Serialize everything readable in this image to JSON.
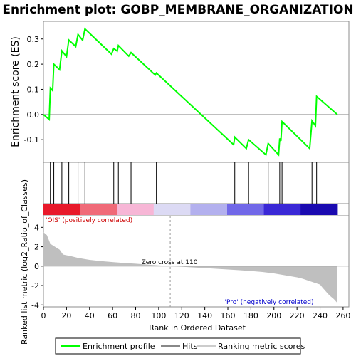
{
  "chart_data": {
    "type": "line",
    "title": "Enrichment plot: GOBP_MEMBRANE_ORGANIZATION",
    "es_ylabel": "Enrichment score (ES)",
    "metric_ylabel": "Ranked list metric (log2_Ratio_of_Classes)",
    "xlabel": "Rank in Ordered Dataset",
    "xlim": [
      0,
      265
    ],
    "es_ylim": [
      -0.19,
      0.37
    ],
    "metric_ylim": [
      -4.2,
      5.2
    ],
    "x_ticks": [
      0,
      20,
      40,
      60,
      80,
      100,
      120,
      140,
      160,
      180,
      200,
      220,
      240,
      260
    ],
    "es_ticks": [
      -0.1,
      0.0,
      0.1,
      0.2,
      0.3
    ],
    "metric_ticks": [
      -4,
      -2,
      0,
      2,
      4
    ],
    "hits": [
      6,
      9,
      16,
      22,
      30,
      36,
      61,
      65,
      76,
      98,
      166,
      178,
      195,
      205,
      207,
      233,
      237
    ],
    "es_profile": {
      "x": [
        0,
        5,
        6,
        8,
        9,
        14,
        16,
        20,
        22,
        28,
        30,
        34,
        36,
        59,
        61,
        64,
        65,
        74,
        76,
        97,
        98,
        165,
        166,
        176,
        178,
        193,
        195,
        204,
        205,
        206,
        207,
        231,
        233,
        236,
        237,
        255
      ],
      "y": [
        0.0,
        -0.02,
        0.105,
        0.095,
        0.2,
        0.178,
        0.253,
        0.23,
        0.296,
        0.27,
        0.318,
        0.295,
        0.34,
        0.24,
        0.262,
        0.252,
        0.274,
        0.232,
        0.246,
        0.157,
        0.165,
        -0.12,
        -0.09,
        -0.135,
        -0.1,
        -0.16,
        -0.115,
        -0.16,
        -0.095,
        -0.105,
        -0.028,
        -0.135,
        -0.025,
        -0.045,
        0.072,
        0.0
      ]
    },
    "metric_profile": {
      "rank": [
        0,
        3,
        6,
        10,
        14,
        17,
        25,
        30,
        40,
        50,
        60,
        70,
        80,
        90,
        100,
        110,
        120,
        130,
        140,
        150,
        160,
        170,
        180,
        190,
        200,
        205,
        210,
        220,
        225,
        230,
        235,
        240,
        242,
        245,
        248,
        252,
        255
      ],
      "value": [
        3.5,
        3.2,
        2.3,
        2.0,
        1.7,
        1.2,
        1.0,
        0.85,
        0.65,
        0.52,
        0.42,
        0.33,
        0.25,
        0.16,
        0.08,
        0.0,
        -0.06,
        -0.13,
        -0.2,
        -0.27,
        -0.34,
        -0.42,
        -0.5,
        -0.6,
        -0.75,
        -0.85,
        -0.95,
        -1.15,
        -1.3,
        -1.5,
        -1.7,
        -1.9,
        -2.2,
        -2.6,
        -3.0,
        -3.4,
        -3.8
      ]
    },
    "zero_cross_label": "Zero cross at 110",
    "zero_cross": 110,
    "pos_label": "'OIS' (positively correlated)",
    "neg_label": "'Pro' (negatively correlated)",
    "legend": [
      "Enrichment profile",
      "Hits",
      "Ranking metric scores"
    ],
    "colors": {
      "profile": "#00ff00",
      "hits": "#000000",
      "metric_fill": "#bfbfbf",
      "pos_label": "#cc0000",
      "neg_label": "#0000cc",
      "bar_stops": [
        "#e8192a",
        "#f06a78",
        "#f7b6d6",
        "#dcdaf4",
        "#b3b0ee",
        "#7168e8",
        "#3a28d6",
        "#1a0ab0"
      ]
    }
  }
}
